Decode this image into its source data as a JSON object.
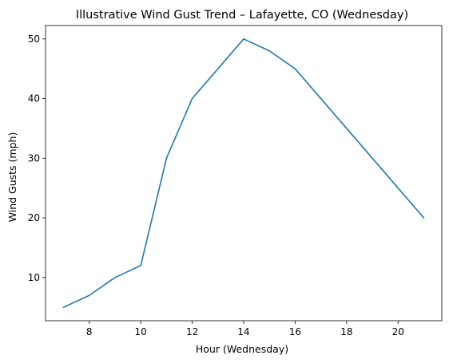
{
  "chart_data": {
    "type": "line",
    "title": "Illustrative Wind Gust Trend – Lafayette, CO (Wednesday)",
    "xlabel": "Hour (Wednesday)",
    "ylabel": "Wind Gusts (mph)",
    "x": [
      7,
      8,
      9,
      10,
      11,
      12,
      13,
      14,
      15,
      16,
      17,
      18,
      19,
      20,
      21
    ],
    "series": [
      {
        "values": [
          5,
          7,
          10,
          12,
          30,
          40,
          45,
          50,
          48,
          45,
          40,
          35,
          30,
          25,
          20
        ],
        "color": "#1f77b4"
      }
    ],
    "xlim": [
      6.3,
      21.7
    ],
    "ylim": [
      2.75,
      52.25
    ],
    "xticks": [
      8,
      10,
      12,
      14,
      16,
      18,
      20
    ],
    "yticks": [
      10,
      20,
      30,
      40,
      50
    ],
    "grid": false,
    "legend": false
  }
}
